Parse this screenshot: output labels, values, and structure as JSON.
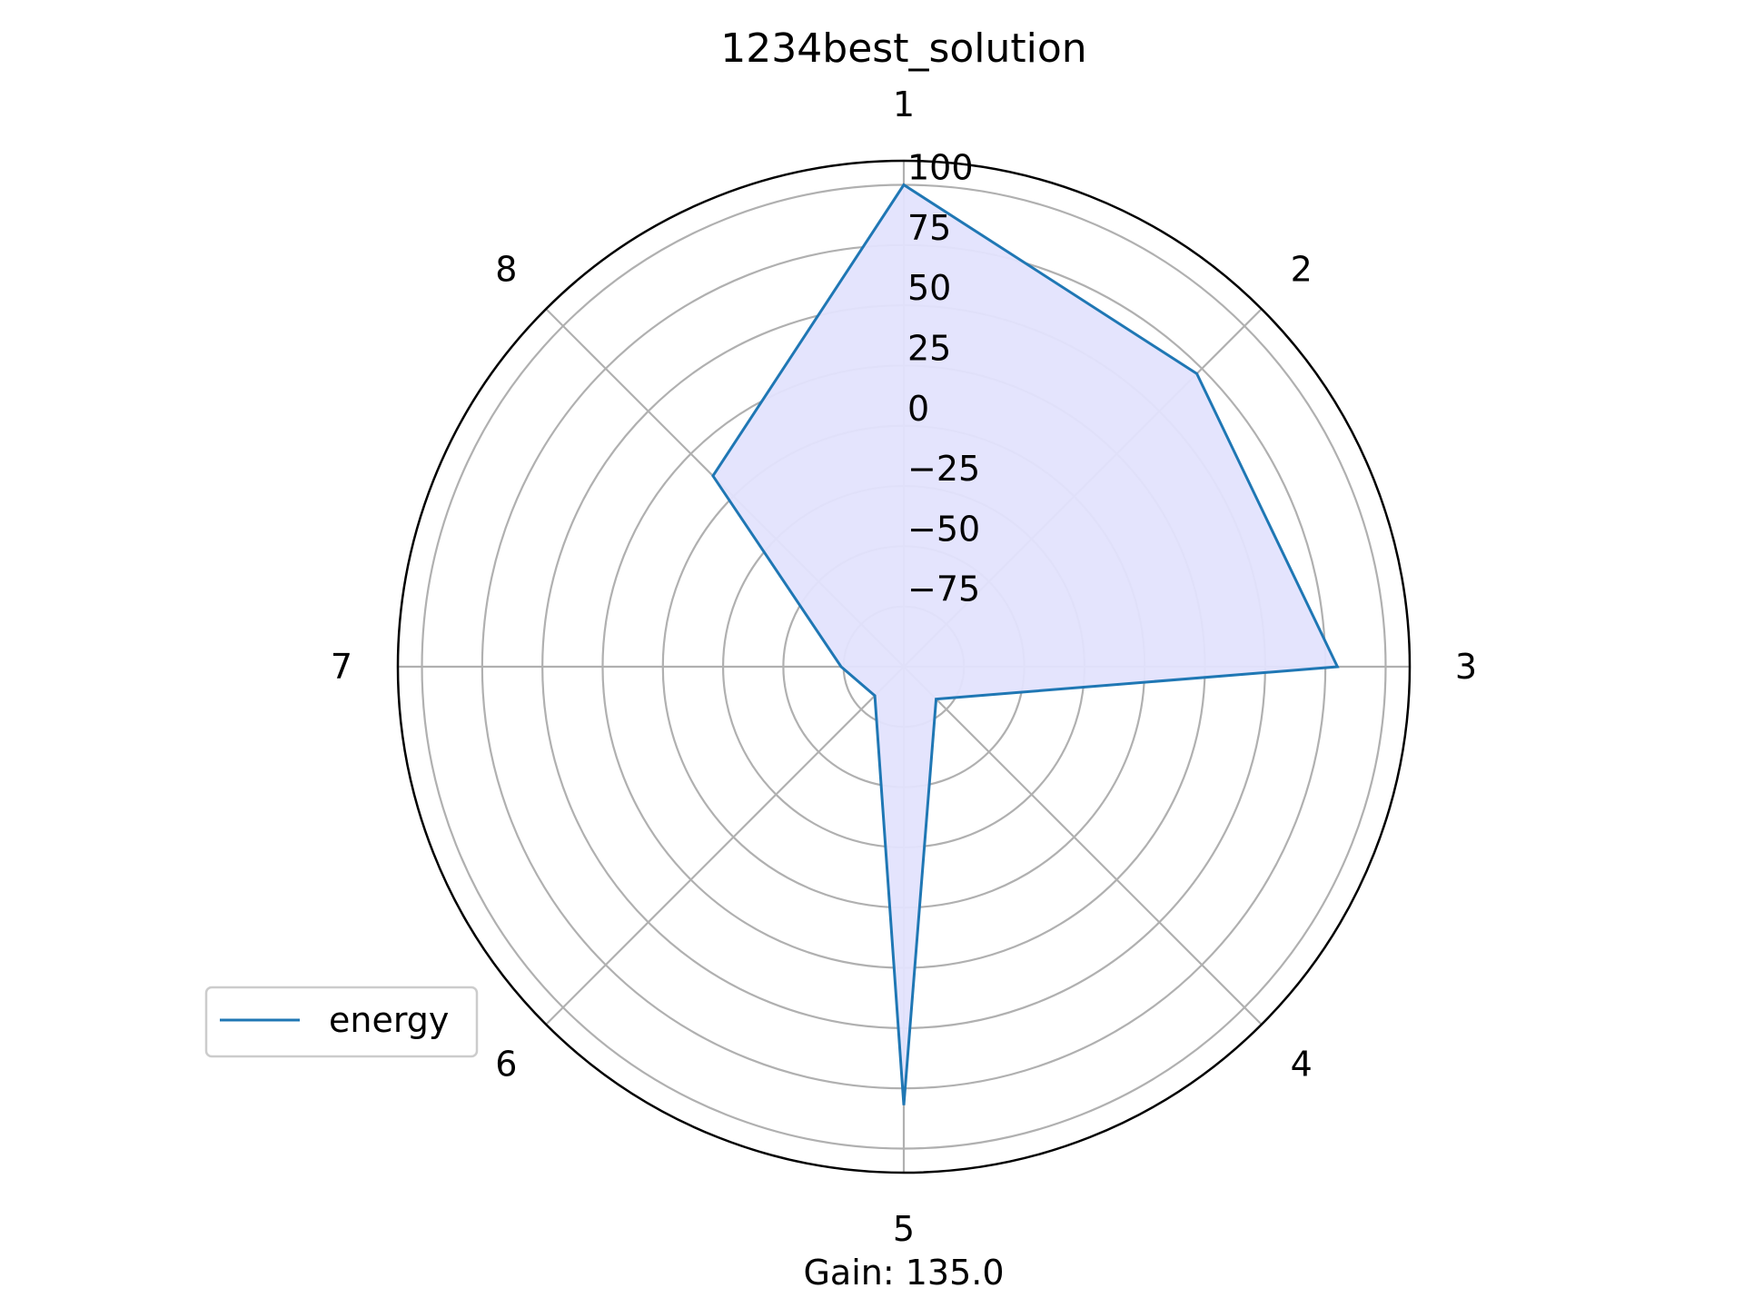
{
  "chart_data": {
    "type": "radar",
    "title": "1234best_solution",
    "categories": [
      "1",
      "2",
      "3",
      "4",
      "5",
      "6",
      "7",
      "8"
    ],
    "series": [
      {
        "name": "energy",
        "values": [
          100,
          72,
          80,
          -81,
          82,
          -83,
          -74,
          12
        ],
        "line_color": "#1f77b4",
        "fill_color": "#e3e3fd"
      }
    ],
    "rlim": [
      -100,
      110
    ],
    "r_ticks": [
      -75,
      -50,
      -25,
      0,
      25,
      50,
      75,
      100
    ],
    "r_tick_labels": [
      "−75",
      "−50",
      "−25",
      "0",
      "25",
      "50",
      "75",
      "100"
    ],
    "grid": true,
    "legend_position": "lower-left",
    "footer_text": "Gain: 135.0"
  }
}
